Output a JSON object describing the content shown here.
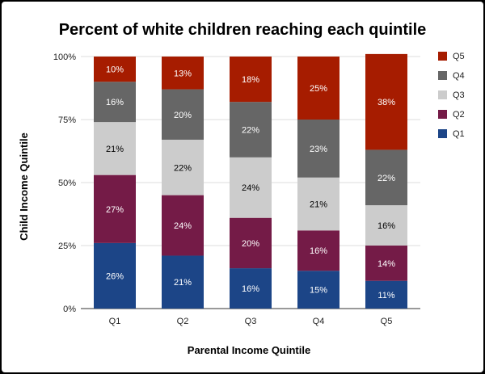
{
  "chart_data": {
    "type": "bar",
    "stacked": true,
    "title": "Percent of white children reaching each quintile",
    "xlabel": "Parental Income Quintile",
    "ylabel": "Child Income Quintile",
    "categories": [
      "Q1",
      "Q2",
      "Q3",
      "Q4",
      "Q5"
    ],
    "ylim": [
      0,
      100
    ],
    "yticks": [
      "0%",
      "25%",
      "50%",
      "75%",
      "100%"
    ],
    "ytick_values": [
      0,
      25,
      50,
      75,
      100
    ],
    "grid": true,
    "legend_position": "right",
    "series": [
      {
        "name": "Q1",
        "color": "#1c4587",
        "label_color": "#ffffff",
        "values": [
          26,
          21,
          16,
          15,
          11
        ],
        "labels": [
          "26%",
          "21%",
          "16%",
          "15%",
          "11%"
        ]
      },
      {
        "name": "Q2",
        "color": "#741b47",
        "label_color": "#ffffff",
        "values": [
          27,
          24,
          20,
          16,
          14
        ],
        "labels": [
          "27%",
          "24%",
          "20%",
          "16%",
          "14%"
        ]
      },
      {
        "name": "Q3",
        "color": "#cccccc",
        "label_color": "#000000",
        "values": [
          21,
          22,
          24,
          21,
          16
        ],
        "labels": [
          "21%",
          "22%",
          "24%",
          "21%",
          "16%"
        ]
      },
      {
        "name": "Q4",
        "color": "#666666",
        "label_color": "#ffffff",
        "values": [
          16,
          20,
          22,
          23,
          22
        ],
        "labels": [
          "16%",
          "20%",
          "22%",
          "23%",
          "22%"
        ]
      },
      {
        "name": "Q5",
        "color": "#a61c00",
        "label_color": "#ffffff",
        "values": [
          10,
          13,
          18,
          25,
          38
        ],
        "labels": [
          "10%",
          "13%",
          "18%",
          "25%",
          "38%"
        ]
      }
    ]
  }
}
